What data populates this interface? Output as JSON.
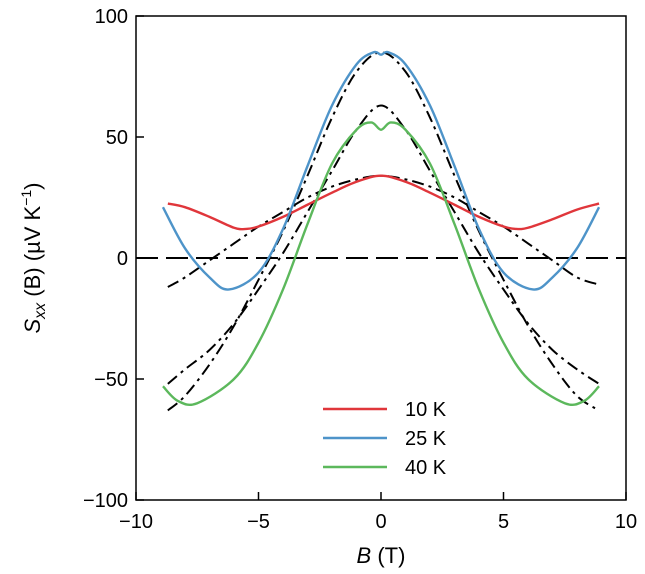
{
  "chart_data": {
    "type": "line",
    "xlabel": {
      "sym": "B",
      "unit": " (T)"
    },
    "ylabel": {
      "sym": "S",
      "sub": "xx",
      "arg": " (B) (µV K",
      "sup": "−1",
      "close": ")"
    },
    "xlim": [
      -10,
      10
    ],
    "ylim": [
      -100,
      100
    ],
    "x_ticks": [
      -10,
      -5,
      0,
      5,
      10
    ],
    "y_ticks": [
      -100,
      -50,
      0,
      50,
      100
    ],
    "x_tick_labels": [
      "−10",
      "−5",
      "0",
      "5",
      "10"
    ],
    "y_tick_labels": [
      "−100",
      "−50",
      "0",
      "50",
      "100"
    ],
    "grid": false,
    "legend_position": "bottom-center",
    "series": [
      {
        "name": "10 K",
        "color": "#e0363b",
        "style": "solid",
        "x": [
          -8.7,
          -8,
          -7,
          -6,
          -5.5,
          -5,
          -4,
          -3,
          -2,
          -1,
          0,
          1,
          2,
          3,
          4,
          5,
          5.5,
          6,
          7,
          8,
          8.9
        ],
        "y": [
          22.5,
          21,
          17,
          12.5,
          12,
          13,
          17,
          22,
          27,
          31.5,
          34,
          31.5,
          27,
          22,
          17,
          13,
          12,
          12.5,
          16,
          20,
          22.5
        ]
      },
      {
        "name": "25 K",
        "color": "#4e94c9",
        "style": "solid",
        "x": [
          -8.9,
          -8,
          -7,
          -6.2,
          -5,
          -4,
          -3,
          -2,
          -1,
          -0.3,
          0,
          0.3,
          1,
          2,
          3,
          4,
          5,
          6.2,
          7,
          8,
          8.9
        ],
        "y": [
          21,
          4,
          -8,
          -13,
          -6,
          12,
          38,
          63,
          80,
          85,
          84,
          85,
          80,
          63,
          38,
          12,
          -6,
          -13,
          -8,
          4,
          21
        ]
      },
      {
        "name": "40 K",
        "color": "#5cb85c",
        "style": "solid",
        "x": [
          -8.9,
          -8.3,
          -7.5,
          -6,
          -5,
          -4,
          -3,
          -2,
          -1,
          -0.4,
          0,
          0.4,
          1,
          2,
          3,
          4,
          5,
          6,
          7.5,
          8.3,
          8.9
        ],
        "y": [
          -53,
          -59,
          -60,
          -50,
          -35,
          -13,
          14,
          39,
          53,
          56,
          53,
          56,
          53,
          39,
          14,
          -13,
          -35,
          -50,
          -60,
          -59,
          -53
        ]
      },
      {
        "name": "",
        "color": "#000000",
        "style": "dashed",
        "x": [
          -10,
          10
        ],
        "y": [
          0,
          0
        ]
      },
      {
        "name": "",
        "color": "#000000",
        "style": "dashdot",
        "x": [
          -8.7,
          -8,
          -7,
          -6,
          -5,
          -4,
          -3,
          -2,
          -1,
          0,
          1,
          2,
          3,
          4,
          5,
          6,
          7,
          8,
          8.9
        ],
        "y": [
          -12,
          -8,
          -1,
          6,
          13,
          19,
          25,
          29.5,
          32.5,
          34,
          32.5,
          29.5,
          25,
          19,
          13,
          6,
          -1,
          -8,
          -11
        ]
      },
      {
        "name": "",
        "color": "#000000",
        "style": "dashdot",
        "x": [
          -8.7,
          -8,
          -7,
          -6,
          -5,
          -4,
          -3,
          -2,
          -1,
          0,
          1,
          2,
          3,
          4,
          5,
          6,
          7,
          8,
          8.9
        ],
        "y": [
          -63,
          -57,
          -44,
          -28,
          -9,
          11,
          34,
          58,
          77,
          85,
          77,
          58,
          34,
          11,
          -9,
          -28,
          -44,
          -57,
          -63
        ]
      },
      {
        "name": "",
        "color": "#000000",
        "style": "dashdot",
        "x": [
          -8.7,
          -8,
          -7,
          -6,
          -5,
          -4,
          -3,
          -2,
          -1,
          0,
          1,
          2,
          3,
          4,
          5,
          6,
          7,
          8,
          8.9
        ],
        "y": [
          -52,
          -46,
          -38,
          -27,
          -13,
          2,
          19,
          36,
          53,
          63,
          53,
          36,
          19,
          2,
          -13,
          -27,
          -38,
          -46,
          -52
        ]
      }
    ]
  }
}
